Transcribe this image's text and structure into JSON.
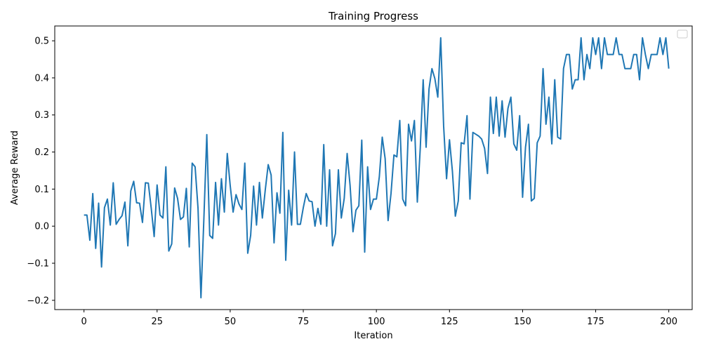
{
  "chart_data": {
    "type": "line",
    "title": "Training Progress",
    "xlabel": "Iteration",
    "ylabel": "Average Reward",
    "xlim": [
      -10,
      208
    ],
    "ylim": [
      -0.225,
      0.54
    ],
    "xticks": [
      0,
      25,
      50,
      75,
      100,
      125,
      150,
      175,
      200
    ],
    "yticks": [
      -0.2,
      -0.1,
      0.0,
      0.1,
      0.2,
      0.3,
      0.4,
      0.5
    ],
    "ytick_labels": [
      "−0.2",
      "−0.1",
      "0.0",
      "0.1",
      "0.2",
      "0.3",
      "0.4",
      "0.5"
    ],
    "grid": false,
    "legend": "top-right",
    "line_color": "#1f77b4",
    "series": [
      {
        "values": [
          0.03,
          0.03,
          -0.038,
          0.088,
          -0.06,
          0.062,
          -0.11,
          0.05,
          0.073,
          0.003,
          0.117,
          0.005,
          0.018,
          0.028,
          0.065,
          -0.053,
          0.095,
          0.121,
          0.063,
          0.062,
          0.01,
          0.117,
          0.116,
          0.048,
          -0.028,
          0.111,
          0.03,
          0.022,
          0.16,
          -0.067,
          -0.048,
          0.103,
          0.075,
          0.018,
          0.025,
          0.102,
          -0.056,
          0.17,
          0.16,
          0.048,
          -0.193,
          0.02,
          0.247,
          -0.025,
          -0.033,
          0.118,
          0.003,
          0.128,
          0.038,
          0.196,
          0.11,
          0.038,
          0.085,
          0.06,
          0.045,
          0.17,
          -0.073,
          -0.025,
          0.108,
          0.003,
          0.118,
          0.022,
          0.098,
          0.166,
          0.138,
          -0.045,
          0.09,
          0.035,
          0.253,
          -0.092,
          0.097,
          0.003,
          0.2,
          0.005,
          0.005,
          0.05,
          0.088,
          0.068,
          0.066,
          0.0,
          0.048,
          0.005,
          0.22,
          0.0,
          0.152,
          -0.053,
          -0.02,
          0.152,
          0.022,
          0.075,
          0.196,
          0.11,
          -0.015,
          0.043,
          0.055,
          0.232,
          -0.07,
          0.16,
          0.045,
          0.073,
          0.073,
          0.133,
          0.24,
          0.182,
          0.015,
          0.088,
          0.192,
          0.187,
          0.285,
          0.073,
          0.055,
          0.275,
          0.23,
          0.285,
          0.065,
          0.21,
          0.395,
          0.213,
          0.37,
          0.425,
          0.398,
          0.348,
          0.508,
          0.27,
          0.128,
          0.233,
          0.148,
          0.027,
          0.068,
          0.225,
          0.222,
          0.298,
          0.073,
          0.253,
          0.248,
          0.243,
          0.235,
          0.21,
          0.142,
          0.348,
          0.25,
          0.348,
          0.243,
          0.338,
          0.24,
          0.318,
          0.348,
          0.222,
          0.205,
          0.298,
          0.078,
          0.213,
          0.275,
          0.068,
          0.075,
          0.225,
          0.243,
          0.425,
          0.275,
          0.348,
          0.222,
          0.395,
          0.24,
          0.235,
          0.425,
          0.463,
          0.463,
          0.37,
          0.395,
          0.395,
          0.508,
          0.395,
          0.463,
          0.425,
          0.508,
          0.463,
          0.508,
          0.425,
          0.508,
          0.463,
          0.463,
          0.463,
          0.508,
          0.463,
          0.463,
          0.425,
          0.425,
          0.425,
          0.463,
          0.463,
          0.395,
          0.508,
          0.463,
          0.425,
          0.463,
          0.463,
          0.463,
          0.508,
          0.463,
          0.508,
          0.425
        ]
      }
    ]
  }
}
